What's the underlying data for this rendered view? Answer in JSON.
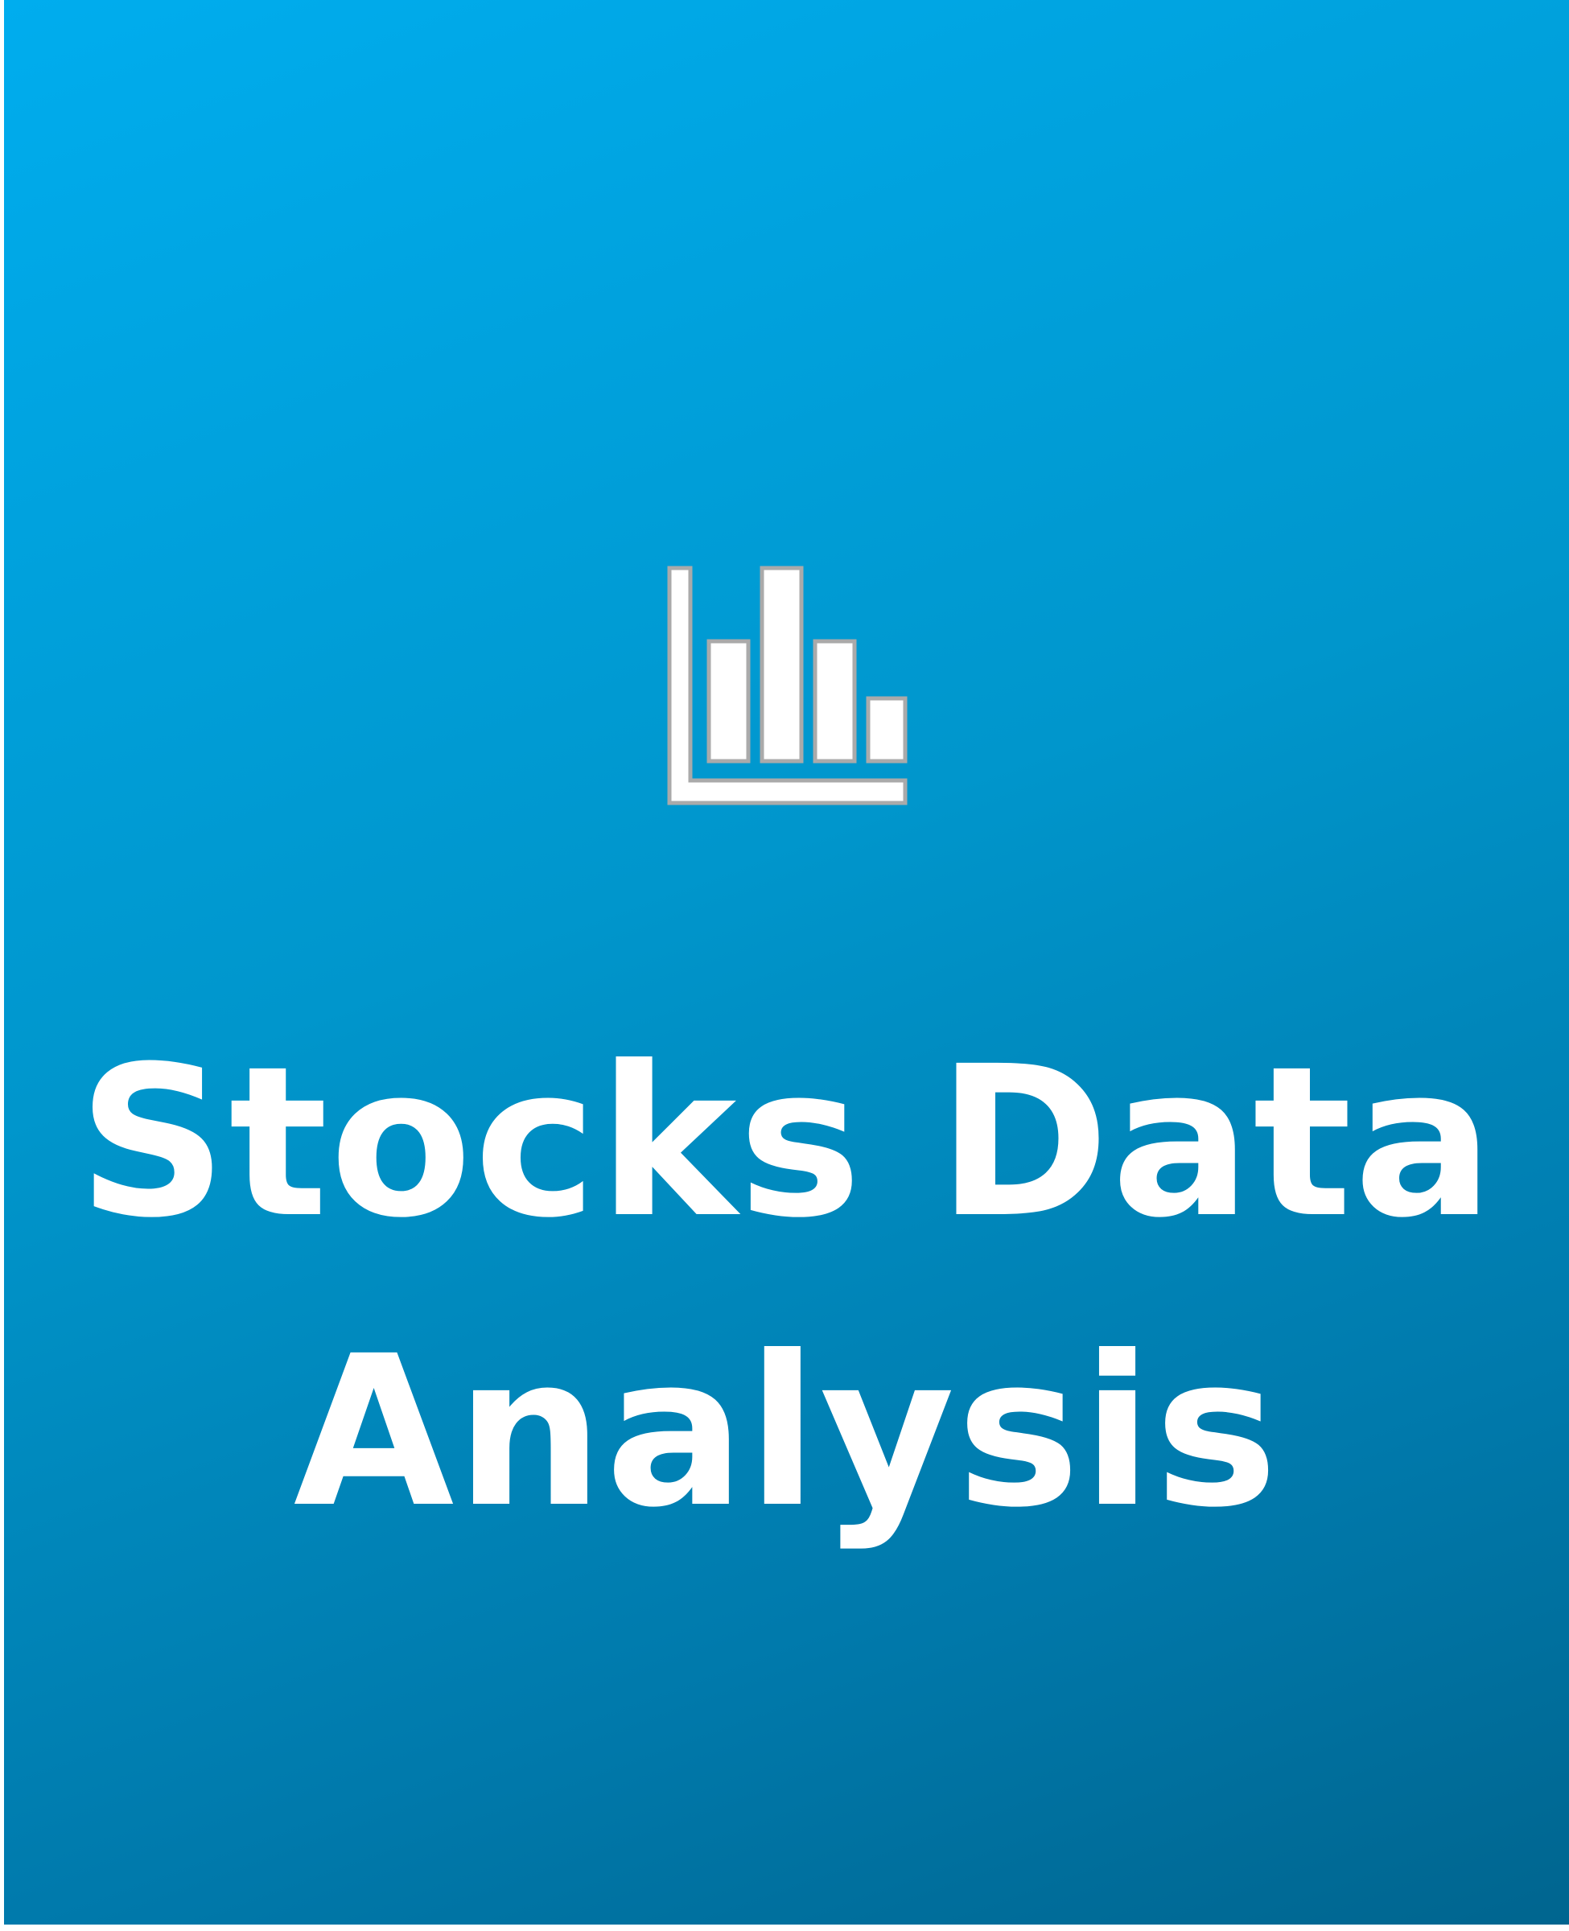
{
  "card": {
    "title_line_1": "Stocks Data",
    "title_line_2": "Analysis",
    "icon": "bar-chart-icon",
    "colors": {
      "gradient_start": "#00adee",
      "gradient_end": "#00658f",
      "text": "#ffffff",
      "icon_fill": "#ffffff",
      "icon_stroke": "#aaaaaa"
    }
  }
}
